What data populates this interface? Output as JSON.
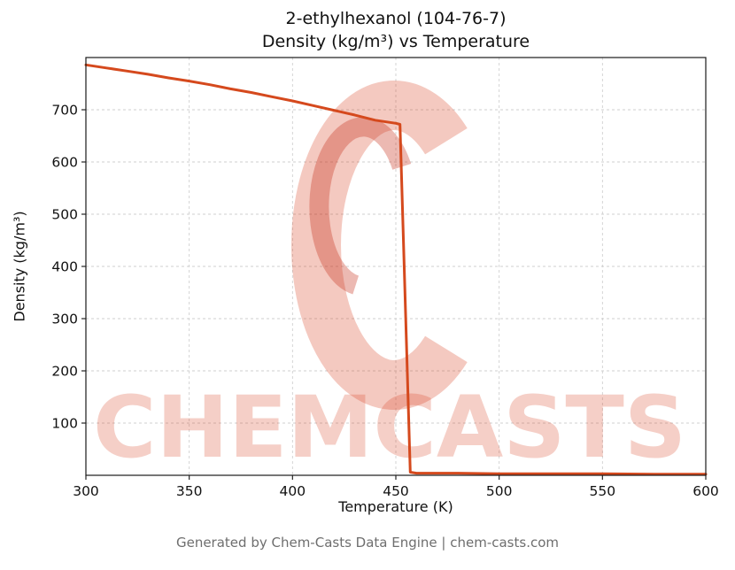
{
  "header": {
    "title_line1": "2-ethylhexanol (104-76-7)",
    "title_line2": "Density (kg/m³) vs Temperature"
  },
  "footer": {
    "text": "Generated by Chem-Casts Data Engine | chem-casts.com"
  },
  "watermark": {
    "text": "CHEMCASTS",
    "text_color": "rgba(217, 62, 30, 0.25)",
    "logo_color": "rgba(217, 62, 30, 0.28)",
    "logo_inner_color": "rgba(198, 44, 22, 0.33)"
  },
  "chart_data": {
    "type": "line",
    "title": "2-ethylhexanol (104-76-7) Density (kg/m³) vs Temperature",
    "xlabel": "Temperature (K)",
    "ylabel": "Density (kg/m³)",
    "xlim": [
      300,
      600
    ],
    "ylim": [
      0,
      800
    ],
    "xticks": [
      300,
      350,
      400,
      450,
      500,
      550,
      600
    ],
    "yticks": [
      100,
      200,
      300,
      400,
      500,
      600,
      700
    ],
    "grid": true,
    "legend": false,
    "line_color": "#d5491d",
    "grid_color": "#cfcfcf",
    "series": [
      {
        "name": "Density",
        "x": [
          300,
          310,
          320,
          330,
          340,
          350,
          360,
          370,
          380,
          390,
          400,
          410,
          420,
          430,
          440,
          450,
          452,
          457,
          460,
          480,
          500,
          525,
          550,
          575,
          600
        ],
        "y": [
          786,
          780,
          774,
          768,
          761,
          755,
          748,
          740,
          733,
          725,
          717,
          708,
          699,
          690,
          680,
          674,
          672,
          6,
          4,
          4,
          3,
          3,
          3,
          2,
          2
        ]
      }
    ]
  }
}
